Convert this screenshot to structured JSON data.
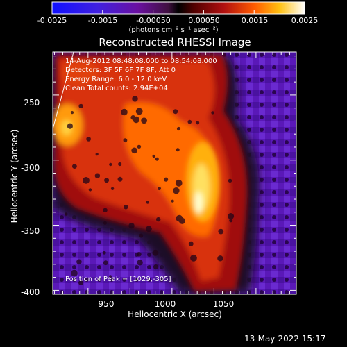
{
  "colorbar": {
    "tick_labels": [
      "-0.0025",
      "-0.0015",
      "-0.00050",
      "0.00050",
      "0.0015",
      "0.0025"
    ],
    "unit_label": "(photons cm⁻² s⁻¹ asec⁻²)",
    "range": [
      -0.0025,
      0.0025
    ]
  },
  "plot": {
    "title": "Reconstructed RHESSI Image",
    "xlabel": "Heliocentric X (arcsec)",
    "ylabel": "Heliocentric Y (arcsec)",
    "x_ticks": [
      "950",
      "1000",
      "1050"
    ],
    "y_ticks": [
      "-250",
      "-300",
      "-350",
      "-400"
    ],
    "xlim": [
      908,
      1198
    ],
    "ylim": [
      -403,
      -217
    ],
    "info_lines": [
      "14-Aug-2012 08:48:08.000 to 08:54:08.000",
      "Detectors: 3F 5F 6F 7F 8F, Att 0",
      "Energy Range: 6.0 - 12.0 keV",
      "Clean     Total counts: 2.94E+04"
    ],
    "peak_text": "Position of Peak = [1029,-305]"
  },
  "footer": {
    "timestamp": "13-May-2022 15:17"
  },
  "colors": {
    "background": "#000000",
    "foreground": "#ffffff"
  }
}
